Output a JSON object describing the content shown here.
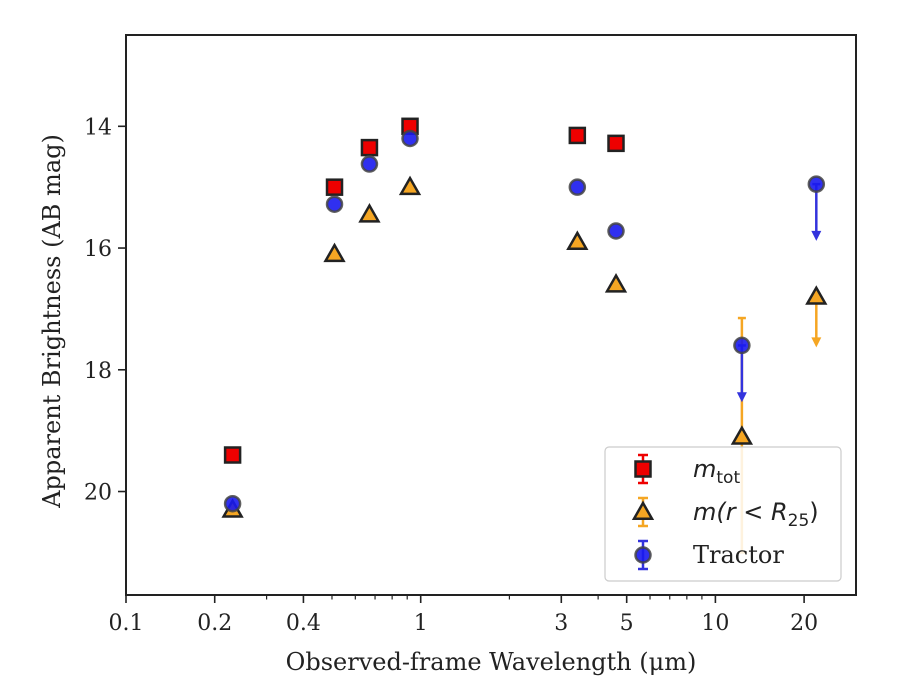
{
  "chart_data": {
    "type": "scatter",
    "xlabel": "Observed-frame Wavelength (μm)",
    "ylabel": "Apparent Brightness (AB mag)",
    "x_scale": "log",
    "y_inverted": true,
    "xlim": [
      0.1,
      30
    ],
    "ylim": [
      21.7,
      12.5
    ],
    "x_ticks": [
      0.1,
      0.2,
      0.4,
      1,
      3,
      5,
      10,
      20
    ],
    "x_tick_labels": [
      "0.1",
      "0.2",
      "0.4",
      "1",
      "3",
      "5",
      "10",
      "20"
    ],
    "y_ticks": [
      14,
      16,
      18,
      20
    ],
    "y_tick_labels": [
      "14",
      "16",
      "18",
      "20"
    ],
    "legend_position": "bottom-right",
    "series": [
      {
        "name": "m_tot",
        "legend_label": "m",
        "legend_sub": "tot",
        "marker": "square",
        "face_color": "#ee0000",
        "edge_color": "#222222",
        "error_color": "#ee0000",
        "points": [
          {
            "x": 0.23,
            "y": 19.4
          },
          {
            "x": 0.51,
            "y": 15.0
          },
          {
            "x": 0.67,
            "y": 14.35
          },
          {
            "x": 0.92,
            "y": 14.0
          },
          {
            "x": 3.4,
            "y": 14.15
          },
          {
            "x": 4.6,
            "y": 14.28
          }
        ]
      },
      {
        "name": "m(r < R25)",
        "legend_label": "m(r < R",
        "legend_sub": "25",
        "legend_tail": ")",
        "marker": "triangle",
        "face_color": "#f5a623",
        "edge_color": "#222222",
        "error_color": "#f5a623",
        "points": [
          {
            "x": 0.23,
            "y": 20.3
          },
          {
            "x": 0.51,
            "y": 16.1
          },
          {
            "x": 0.67,
            "y": 15.45
          },
          {
            "x": 0.92,
            "y": 15.0
          },
          {
            "x": 3.4,
            "y": 15.9
          },
          {
            "x": 4.6,
            "y": 16.6
          },
          {
            "x": 12.3,
            "y": 19.1,
            "err": [
              17.15,
              21.0
            ]
          },
          {
            "x": 22.0,
            "y": 16.8,
            "upper_limit_to": 17.6
          }
        ]
      },
      {
        "name": "Tractor",
        "legend_label": "Tractor",
        "marker": "circle",
        "face_color": "#1a1aee",
        "edge_color": "#444444",
        "error_color": "#3333dd",
        "points": [
          {
            "x": 0.23,
            "y": 20.2
          },
          {
            "x": 0.51,
            "y": 15.28
          },
          {
            "x": 0.67,
            "y": 14.62
          },
          {
            "x": 0.92,
            "y": 14.2
          },
          {
            "x": 3.4,
            "y": 15.0
          },
          {
            "x": 4.6,
            "y": 15.72
          },
          {
            "x": 12.3,
            "y": 17.6,
            "upper_limit_to": 18.5
          },
          {
            "x": 22.0,
            "y": 14.95,
            "upper_limit_to": 15.85
          }
        ]
      }
    ]
  }
}
